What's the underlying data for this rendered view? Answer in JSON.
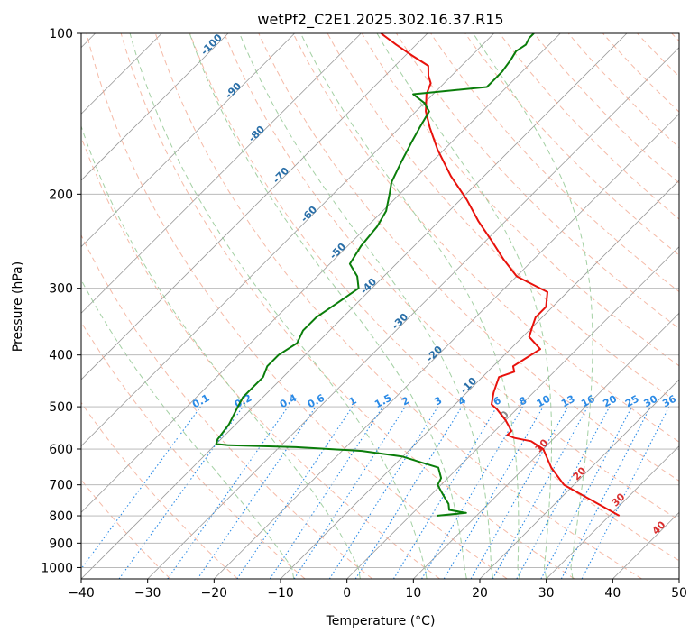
{
  "chart_data": {
    "type": "line",
    "title": "wetPf2_C2E1.2025.302.16.37.R15",
    "xlabel": "Temperature (°C)",
    "ylabel": "Pressure (hPa)",
    "xlim": [
      -40,
      50
    ],
    "ylim": [
      1050,
      100
    ],
    "y_scale": "log",
    "grid": true,
    "x_ticks": [
      "−40",
      "−30",
      "−20",
      "−10",
      "0",
      "10",
      "20",
      "30",
      "40",
      "50"
    ],
    "x_tick_values": [
      -40,
      -30,
      -20,
      -10,
      0,
      10,
      20,
      30,
      40,
      50
    ],
    "y_ticks": [
      "100",
      "200",
      "300",
      "400",
      "500",
      "600",
      "700",
      "800",
      "900",
      "1000"
    ],
    "y_tick_values": [
      100,
      200,
      300,
      400,
      500,
      600,
      700,
      800,
      900,
      1000
    ],
    "colors": {
      "temperature": "#e8120c",
      "dewpoint": "#0a7d0a",
      "isotherm": "#9a9a9a",
      "dry_adiabat": "#f2a38a",
      "moist_adiabat": "#8cc48c",
      "mixing_ratio": "#2a8ae6",
      "isotherm_label": "#2a6fa8",
      "dry_label": "#d93030"
    },
    "isotherm_labels": [
      {
        "label": "-100",
        "value": -100
      },
      {
        "label": "-90",
        "value": -90
      },
      {
        "label": "-80",
        "value": -80
      },
      {
        "label": "-70",
        "value": -70
      },
      {
        "label": "-60",
        "value": -60
      },
      {
        "label": "-50",
        "value": -50
      },
      {
        "label": "-40",
        "value": -40
      },
      {
        "label": "-30",
        "value": -30
      },
      {
        "label": "-20",
        "value": -20
      },
      {
        "label": "-10",
        "value": -10
      },
      {
        "label": "0",
        "value": 0
      },
      {
        "label": "10",
        "value": 10
      },
      {
        "label": "20",
        "value": 20
      },
      {
        "label": "30",
        "value": 30
      },
      {
        "label": "40",
        "value": 40
      }
    ],
    "mixing_ratio_labels": [
      "0.1",
      "0.2",
      "0.4",
      "0.6",
      "1",
      "1.5",
      "2",
      "3",
      "4",
      "6",
      "8",
      "10",
      "13",
      "16",
      "20",
      "25",
      "30",
      "36"
    ],
    "mixing_ratio_values": [
      0.1,
      0.2,
      0.4,
      0.6,
      1,
      1.5,
      2,
      3,
      4,
      6,
      8,
      10,
      13,
      16,
      20,
      25,
      30,
      36
    ],
    "series": [
      {
        "key": "temperature",
        "p": [
          800,
          760,
          700,
          650,
          600,
          580,
          572,
          565,
          555,
          530,
          505,
          495,
          470,
          440,
          430,
          420,
          410,
          390,
          370,
          355,
          340,
          325,
          305,
          285,
          265,
          245,
          225,
          205,
          185,
          165,
          150,
          140,
          130,
          124,
          120,
          115,
          110,
          105,
          100
        ],
        "t": [
          31.5,
          26.5,
          18.5,
          14,
          10,
          7,
          4,
          2.5,
          2.5,
          0,
          -3,
          -4.5,
          -6,
          -7.5,
          -6,
          -7,
          -6.5,
          -5.5,
          -9,
          -10,
          -11,
          -11,
          -13,
          -20,
          -24.5,
          -29,
          -34,
          -39,
          -45,
          -51,
          -55.5,
          -58.5,
          -61,
          -62,
          -63.5,
          -65,
          -69,
          -73,
          -77
        ]
      },
      {
        "key": "dewpoint",
        "p": [
          800,
          790,
          780,
          760,
          740,
          720,
          700,
          680,
          650,
          635,
          620,
          605,
          595,
          590,
          587,
          575,
          540,
          510,
          480,
          460,
          440,
          420,
          400,
          380,
          360,
          340,
          320,
          300,
          285,
          270,
          250,
          230,
          215,
          200,
          190,
          175,
          160,
          150,
          140,
          135,
          130,
          126,
          122,
          118,
          112,
          108,
          105,
          102,
          100
        ],
        "t": [
          4,
          8,
          5,
          4,
          2.5,
          1,
          -0.5,
          -1,
          -3,
          -6.5,
          -10,
          -17,
          -27.5,
          -38,
          -40,
          -40.5,
          -41,
          -42,
          -43,
          -43,
          -43,
          -44,
          -44,
          -43,
          -44,
          -44,
          -43,
          -42,
          -44,
          -47,
          -48,
          -48.5,
          -49.5,
          -51.5,
          -53,
          -54.5,
          -56,
          -57,
          -58,
          -60,
          -63,
          -53,
          -53,
          -53,
          -53.5,
          -54,
          -53.5,
          -54,
          -54
        ]
      }
    ]
  }
}
